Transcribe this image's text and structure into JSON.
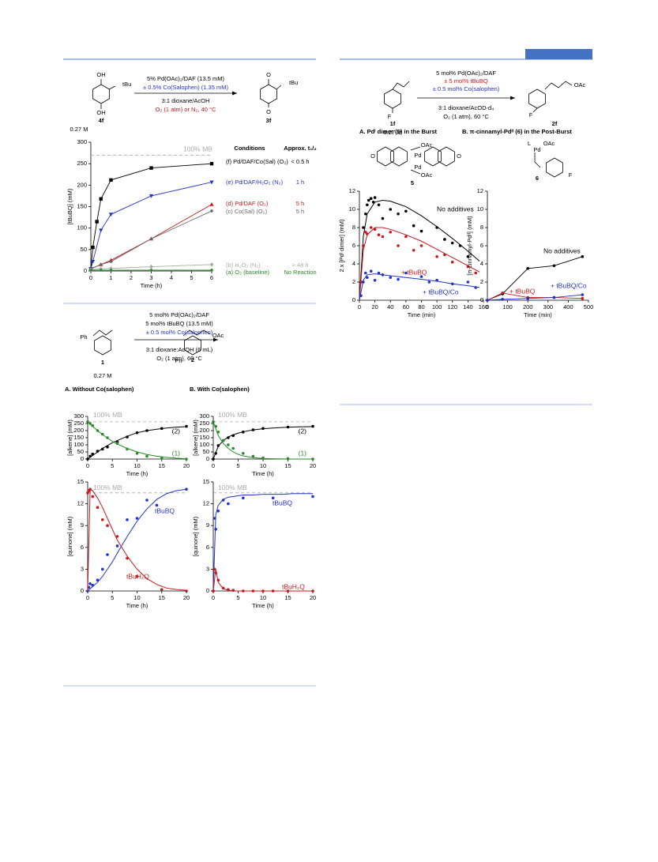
{
  "schemes": [
    {
      "texts": [
        "OH",
        "tBu",
        "OH",
        "4f",
        "0.27 M",
        "5% Pd(OAc)₂/DAF  (13.5 mM)",
        "± 0.5% Co(Salophen)  (1.35 mM)",
        "3:1 dioxane/AcOH",
        "O₂ (1 atm) or N₂, 40 °C",
        "O",
        "tBu",
        "O",
        "3f"
      ]
    },
    {
      "texts": [
        "5 mol% Pd(OAc)₂/DAF",
        "± 5 mol% tBuBQ",
        "± 0.5 mol% Co(salophen)",
        "3:1 dioxane/AcOD-d₄",
        "O₂ (1 atm), 60 °C",
        "F",
        "1f",
        "0.27 M",
        "F",
        "OAc",
        "2f",
        "A.  Pdᴵ dimer (5) in the Burst",
        "B.  π-cinnamyl-Pdᴵᴵ (6) in the Post-Burst",
        "5",
        "6",
        "OAc",
        "OAc",
        "Pd",
        "Pd",
        "O",
        "O",
        "L",
        "Pd",
        "OAc",
        "F"
      ]
    },
    {
      "texts": [
        "5 mol% Pd(OAc)₂/DAF",
        "5 mol% tBuBQ (13.5 mM)",
        "± 0.5 mol% Co(salophen)",
        "3:1 dioxane:AcOH (6 mL)",
        "O₂ (1 atm), 60 °C",
        "Ph",
        "1",
        "0.27 M",
        "Ph",
        "OAc",
        "2",
        "A. Without Co(salophen)",
        "B. With Co(salophen)"
      ]
    }
  ],
  "chart_data": [
    {
      "type": "line",
      "xlabel": "Time (h)",
      "ylabel": "[tBuBQ] (mM)",
      "xlim": [
        0,
        6
      ],
      "xticks": [
        0,
        1,
        2,
        3,
        4,
        5,
        6
      ],
      "ylim": [
        0,
        300
      ],
      "yticks": [
        0,
        50,
        100,
        150,
        200,
        250,
        300
      ],
      "reference_line": {
        "value": 270,
        "label": "100% MB"
      },
      "legend_headers": [
        "Conditions",
        "Approx. t₁/₂"
      ],
      "series": [
        {
          "name": "(f) Pd/DAF/Co(Sal) (O₂)",
          "half_life": "< 0.5 h",
          "color": "#000000",
          "marker": "square",
          "x": [
            0,
            0.1,
            0.3,
            0.5,
            1,
            3,
            6
          ],
          "values": [
            5,
            55,
            115,
            168,
            212,
            240,
            250
          ]
        },
        {
          "name": "(e) Pd/DAF/H₂O₂ (N₂)",
          "half_life": "1 h",
          "color": "#2233cc",
          "marker": "triangle-down",
          "x": [
            0,
            0.1,
            0.5,
            1,
            3,
            6
          ],
          "values": [
            5,
            22,
            95,
            132,
            175,
            207
          ]
        },
        {
          "name": "(d) Pd/DAF (O₂)",
          "half_life": "5 h",
          "color": "#c8181c",
          "marker": "triangle-up",
          "x": [
            0,
            0.5,
            1,
            3,
            6
          ],
          "values": [
            5,
            15,
            25,
            75,
            155
          ]
        },
        {
          "name": "(c) Co(Sal) (O₂)",
          "half_life": "5 h",
          "color": "#666666",
          "marker": "circle",
          "x": [
            0,
            0.5,
            1,
            3,
            6
          ],
          "values": [
            5,
            15,
            22,
            75,
            140
          ]
        },
        {
          "name": "(b) H₂O₂ (N₂)",
          "half_life": "> 48 h",
          "color": "#aaaaaa",
          "marker": "diamond",
          "x": [
            0,
            0.5,
            1,
            3,
            6
          ],
          "values": [
            3,
            5,
            6,
            10,
            15
          ]
        },
        {
          "name": "(a) O₂ (baseline)",
          "half_life": "No Reaction",
          "color": "#2a8a2a",
          "marker": "circle",
          "x": [
            0,
            0.5,
            1,
            3,
            6
          ],
          "values": [
            2,
            2,
            2,
            2,
            2
          ]
        }
      ]
    },
    {
      "type": "scatter",
      "xlabel": "Time (min)",
      "ylabel": "2 x [Pdᴵ dimer] (mM)",
      "xlim": [
        0,
        160
      ],
      "xticks": [
        0,
        20,
        40,
        60,
        80,
        100,
        120,
        140,
        160
      ],
      "ylim": [
        0,
        12
      ],
      "yticks": [
        0,
        2,
        4,
        6,
        8,
        10,
        12
      ],
      "fit_x": [
        0,
        5,
        10,
        20,
        30,
        40,
        60,
        80,
        100,
        120,
        140,
        155
      ],
      "series": [
        {
          "name": "No additives",
          "color": "#000000",
          "marker": "circle",
          "x": [
            2,
            5,
            8,
            10,
            12,
            15,
            18,
            20,
            25,
            30,
            40,
            50,
            60,
            70,
            80,
            100,
            110,
            120,
            130,
            140
          ],
          "values": [
            2,
            8,
            9.5,
            10.5,
            11,
            11.2,
            10.8,
            11.3,
            10.5,
            9,
            10,
            9.5,
            9.8,
            8.2,
            7.6,
            8,
            6.7,
            6.3,
            6,
            4.8
          ],
          "fit_values": [
            0,
            7,
            9.5,
            10.8,
            11,
            10.9,
            10.3,
            9.3,
            8.1,
            6.8,
            5.4,
            4.3
          ]
        },
        {
          "name": "+ tBuBQ",
          "color": "#c8181c",
          "marker": "circle",
          "x": [
            2,
            5,
            8,
            10,
            15,
            20,
            25,
            30,
            40,
            50,
            60,
            70,
            80,
            100,
            110,
            120,
            140,
            150
          ],
          "values": [
            2,
            6,
            7.5,
            7.3,
            8,
            7.8,
            7.2,
            7,
            7.5,
            6,
            7,
            5.5,
            6,
            4.8,
            5,
            4.2,
            3.7,
            3
          ],
          "fit_values": [
            0,
            5.5,
            7.2,
            8,
            8,
            7.8,
            7.2,
            6.5,
            5.6,
            4.7,
            3.8,
            3.1
          ]
        },
        {
          "name": "+ tBuBQ/Co",
          "color": "#2233cc",
          "marker": "circle",
          "x": [
            2,
            5,
            8,
            10,
            15,
            20,
            25,
            30,
            40,
            50,
            60,
            80,
            90,
            100,
            120,
            140,
            150
          ],
          "values": [
            0.5,
            2,
            3,
            2.5,
            3.2,
            2.2,
            3,
            2.8,
            2.5,
            2.3,
            3,
            2.6,
            2,
            2.2,
            1.8,
            2,
            1.4
          ],
          "fit_values": [
            0,
            2.2,
            2.8,
            2.9,
            2.8,
            2.7,
            2.5,
            2.3,
            2.1,
            1.8,
            1.6,
            1.4
          ]
        }
      ]
    },
    {
      "type": "line",
      "xlabel": "Time (min)",
      "ylabel": "[π-cinnamyl-Pdᴵᴵ] (mM)",
      "xlim": [
        0,
        500
      ],
      "xticks": [
        0,
        100,
        200,
        300,
        400,
        500
      ],
      "ylim": [
        0,
        12
      ],
      "yticks": [
        0,
        2,
        4,
        6,
        8,
        10,
        12
      ],
      "series": [
        {
          "name": "No additives",
          "color": "#000000",
          "marker": "circle",
          "x": [
            0,
            75,
            200,
            330,
            470
          ],
          "values": [
            0,
            0.7,
            3.5,
            3.8,
            4.8
          ]
        },
        {
          "name": "+ tBuBQ",
          "color": "#c8181c",
          "marker": "circle",
          "x": [
            0,
            75,
            200,
            330,
            470
          ],
          "values": [
            0,
            0.8,
            0.3,
            0.3,
            0.2
          ]
        },
        {
          "name": "+ tBuBQ/Co",
          "color": "#2233cc",
          "marker": "circle",
          "x": [
            0,
            75,
            200,
            330,
            470
          ],
          "values": [
            0,
            0.1,
            0.2,
            0.3,
            0.6
          ]
        }
      ]
    },
    {
      "type": "scatter",
      "xlabel": "Time (h)",
      "ylabel": "[alkene] (mM)",
      "xlim": [
        0,
        20
      ],
      "xticks": [
        0,
        5,
        10,
        15,
        20
      ],
      "ylim": [
        0,
        300
      ],
      "yticks": [
        0,
        50,
        100,
        150,
        200,
        250,
        300
      ],
      "reference_line": {
        "value": 262,
        "label": "100% MB"
      },
      "fit_x": [
        0,
        1,
        2,
        3,
        4,
        5,
        6,
        8,
        10,
        12,
        14,
        16,
        18,
        20
      ],
      "series": [
        {
          "name": "(2)",
          "color": "#000000",
          "marker": "circle",
          "x": [
            0,
            0.5,
            1,
            2,
            3,
            4,
            6,
            8,
            10,
            12,
            15,
            20
          ],
          "values": [
            0,
            20,
            35,
            55,
            70,
            85,
            120,
            155,
            185,
            200,
            215,
            230
          ],
          "fit_values": [
            0,
            25,
            50,
            75,
            95,
            115,
            130,
            160,
            185,
            200,
            210,
            218,
            224,
            228
          ]
        },
        {
          "name": "(1)",
          "color": "#2a8a2a",
          "marker": "circle",
          "x": [
            0,
            0.5,
            1,
            2,
            3,
            4,
            6,
            8,
            10,
            12,
            15,
            20
          ],
          "values": [
            262,
            250,
            235,
            200,
            175,
            150,
            110,
            70,
            40,
            20,
            5,
            0
          ],
          "fit_values": [
            262,
            230,
            200,
            172,
            148,
            125,
            105,
            75,
            50,
            32,
            20,
            12,
            6,
            2
          ]
        }
      ]
    },
    {
      "type": "scatter",
      "xlabel": "Time (h)",
      "ylabel": "[alkene] (mM)",
      "xlim": [
        0,
        20
      ],
      "xticks": [
        0,
        5,
        10,
        15,
        20
      ],
      "ylim": [
        0,
        300
      ],
      "yticks": [
        0,
        50,
        100,
        150,
        200,
        250,
        300
      ],
      "reference_line": {
        "value": 262,
        "label": "100% MB"
      },
      "fit_x": [
        0,
        1,
        2,
        3,
        4,
        5,
        6,
        8,
        10,
        12,
        14,
        16,
        18,
        20
      ],
      "series": [
        {
          "name": "(2)",
          "color": "#000000",
          "marker": "circle",
          "x": [
            0,
            0.5,
            1,
            2,
            3,
            4,
            6,
            8,
            10,
            15,
            20
          ],
          "values": [
            0,
            40,
            95,
            130,
            150,
            165,
            190,
            205,
            215,
            225,
            230
          ],
          "fit_values": [
            0,
            90,
            130,
            155,
            170,
            182,
            192,
            205,
            213,
            218,
            222,
            225,
            227,
            228
          ]
        },
        {
          "name": "(1)",
          "color": "#2a8a2a",
          "marker": "circle",
          "x": [
            0,
            0.5,
            1,
            2,
            3,
            4,
            6,
            8,
            10,
            15,
            20
          ],
          "values": [
            262,
            230,
            190,
            130,
            100,
            75,
            40,
            20,
            8,
            3,
            0
          ],
          "fit_values": [
            262,
            165,
            110,
            75,
            50,
            33,
            22,
            10,
            4,
            2,
            1,
            0,
            0,
            0
          ]
        }
      ]
    },
    {
      "type": "scatter",
      "xlabel": "Time (h)",
      "ylabel": "[quinone] (mM)",
      "xlim": [
        0,
        20
      ],
      "xticks": [
        0,
        5,
        10,
        15,
        20
      ],
      "ylim": [
        0,
        15
      ],
      "yticks": [
        0,
        3,
        6,
        9,
        12,
        15
      ],
      "reference_line": {
        "value": 13.5,
        "label": "100% MB"
      },
      "fit_x": [
        0,
        0.5,
        1,
        2,
        3,
        4,
        5,
        6,
        8,
        10,
        12,
        14,
        16,
        18,
        20
      ],
      "series": [
        {
          "name": "tBuBQ",
          "color": "#2233cc",
          "marker": "circle",
          "x": [
            0,
            0.25,
            0.5,
            1,
            2,
            3,
            4,
            6,
            8,
            10,
            12,
            14,
            20
          ],
          "values": [
            0,
            0.5,
            1,
            0.8,
            1.5,
            3,
            5,
            6.2,
            9.8,
            10,
            12.5,
            11.8,
            14
          ],
          "fit_values": [
            0,
            0.3,
            0.6,
            1.2,
            2,
            3,
            4,
            5.2,
            7.5,
            9.6,
            11.3,
            12.6,
            13.4,
            13.8,
            14
          ]
        },
        {
          "name": "tBuH₂Q",
          "color": "#c8181c",
          "marker": "circle",
          "x": [
            0,
            0.25,
            0.5,
            1,
            2,
            3,
            4,
            6,
            8,
            10,
            15,
            20
          ],
          "values": [
            13.5,
            13.8,
            14,
            13,
            11.5,
            9.8,
            9,
            7.5,
            4.5,
            2,
            0.2,
            0
          ],
          "fit_values": [
            0,
            14,
            13.8,
            12.8,
            11.5,
            10,
            8.5,
            7,
            4.8,
            3,
            1.7,
            0.9,
            0.4,
            0.2,
            0.1
          ]
        }
      ]
    },
    {
      "type": "scatter",
      "xlabel": "Time (h)",
      "ylabel": "[quinone] (mM)",
      "xlim": [
        0,
        20
      ],
      "xticks": [
        0,
        5,
        10,
        15,
        20
      ],
      "ylim": [
        0,
        15
      ],
      "yticks": [
        0,
        3,
        6,
        9,
        12,
        15
      ],
      "reference_line": {
        "value": 13.5,
        "label": "100% MB"
      },
      "fit_x": [
        0,
        0.5,
        1,
        2,
        3,
        4,
        5,
        6,
        8,
        10,
        12,
        14,
        16,
        18,
        20
      ],
      "series": [
        {
          "name": "tBuBQ",
          "color": "#2233cc",
          "marker": "circle",
          "x": [
            0,
            0.25,
            0.5,
            1,
            2,
            3,
            6,
            12,
            20
          ],
          "values": [
            0,
            10,
            8.5,
            11,
            12.5,
            12,
            12.8,
            12.8,
            13
          ],
          "fit_values": [
            0,
            10.5,
            11.8,
            12.6,
            12.9,
            13,
            13.1,
            13.2,
            13.2,
            13.3,
            13.3,
            13.3,
            13.4,
            13.4,
            13.4
          ]
        },
        {
          "name": "tBuH₂Q",
          "color": "#c8181c",
          "marker": "circle",
          "x": [
            0,
            0.25,
            0.5,
            1,
            2,
            3,
            4,
            6,
            8,
            10,
            12,
            15,
            20
          ],
          "values": [
            0,
            3,
            2.5,
            1.5,
            0.4,
            0.2,
            0.1,
            0,
            0,
            0,
            0,
            0,
            0
          ],
          "fit_values": [
            0,
            3,
            1.2,
            0.3,
            0.1,
            0,
            0,
            0,
            0,
            0,
            0,
            0,
            0,
            0,
            0
          ]
        }
      ]
    }
  ]
}
